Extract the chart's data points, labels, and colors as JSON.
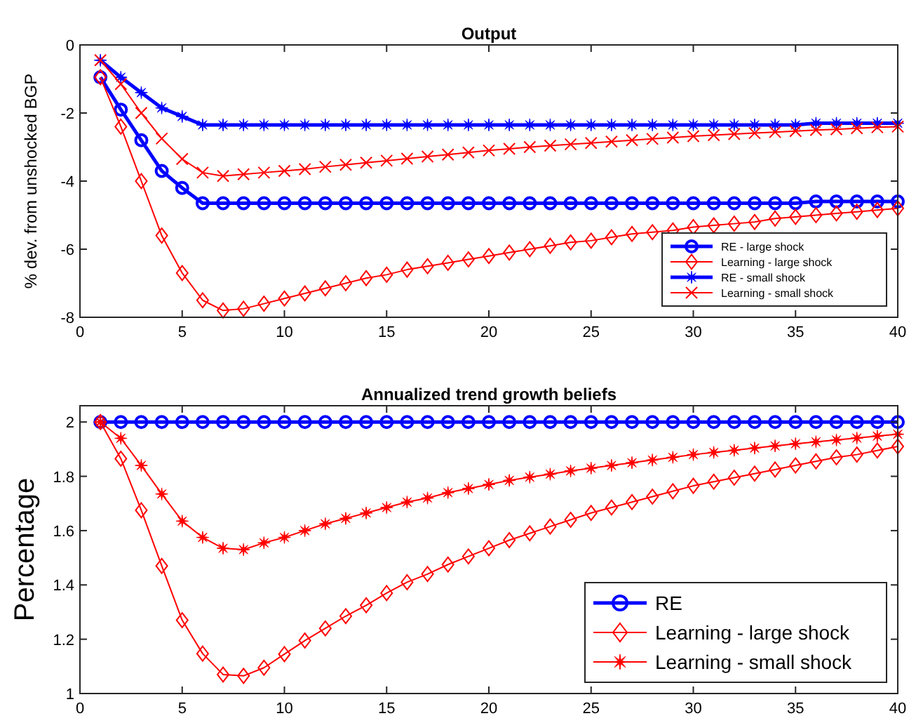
{
  "chart_data": [
    {
      "type": "line",
      "title": "Output",
      "ylabel": "% dev. from unshocked BGP",
      "x": [
        1,
        2,
        3,
        4,
        5,
        6,
        7,
        8,
        9,
        10,
        11,
        12,
        13,
        14,
        15,
        16,
        17,
        18,
        19,
        20,
        21,
        22,
        23,
        24,
        25,
        26,
        27,
        28,
        29,
        30,
        31,
        32,
        33,
        34,
        35,
        36,
        37,
        38,
        39,
        40
      ],
      "xlim": [
        0,
        40
      ],
      "xticks": [
        0,
        5,
        10,
        15,
        20,
        25,
        30,
        35,
        40
      ],
      "ylim": [
        -8,
        0
      ],
      "yticks": [
        -8,
        -6,
        -4,
        -2,
        0
      ],
      "grid": false,
      "legend": "bottom right",
      "series": [
        {
          "name": "RE - large shock",
          "color": "#0000ff",
          "marker": "circle",
          "values": [
            -0.95,
            -1.9,
            -2.8,
            -3.7,
            -4.2,
            -4.65,
            -4.65,
            -4.65,
            -4.65,
            -4.65,
            -4.65,
            -4.65,
            -4.65,
            -4.65,
            -4.65,
            -4.65,
            -4.65,
            -4.65,
            -4.65,
            -4.65,
            -4.65,
            -4.65,
            -4.65,
            -4.65,
            -4.65,
            -4.65,
            -4.65,
            -4.65,
            -4.65,
            -4.65,
            -4.65,
            -4.65,
            -4.65,
            -4.65,
            -4.65,
            -4.6,
            -4.6,
            -4.6,
            -4.6,
            -4.6
          ]
        },
        {
          "name": "Learning - large shock",
          "color": "#ff0000",
          "marker": "diamond",
          "values": [
            -0.95,
            -2.4,
            -4.0,
            -5.6,
            -6.7,
            -7.5,
            -7.8,
            -7.75,
            -7.6,
            -7.45,
            -7.3,
            -7.15,
            -7.0,
            -6.85,
            -6.75,
            -6.6,
            -6.5,
            -6.4,
            -6.3,
            -6.2,
            -6.1,
            -6.0,
            -5.9,
            -5.8,
            -5.75,
            -5.65,
            -5.55,
            -5.5,
            -5.45,
            -5.35,
            -5.3,
            -5.25,
            -5.2,
            -5.1,
            -5.05,
            -5.0,
            -4.95,
            -4.9,
            -4.85,
            -4.8
          ]
        },
        {
          "name": "RE - small shock",
          "color": "#0000ff",
          "marker": "star",
          "values": [
            -0.45,
            -0.95,
            -1.4,
            -1.85,
            -2.1,
            -2.35,
            -2.35,
            -2.35,
            -2.35,
            -2.35,
            -2.35,
            -2.35,
            -2.35,
            -2.35,
            -2.35,
            -2.35,
            -2.35,
            -2.35,
            -2.35,
            -2.35,
            -2.35,
            -2.35,
            -2.35,
            -2.35,
            -2.35,
            -2.35,
            -2.35,
            -2.35,
            -2.35,
            -2.35,
            -2.35,
            -2.35,
            -2.35,
            -2.35,
            -2.35,
            -2.3,
            -2.3,
            -2.3,
            -2.3,
            -2.3
          ]
        },
        {
          "name": "Learning - small shock",
          "color": "#ff0000",
          "marker": "cross",
          "values": [
            -0.45,
            -1.15,
            -2.0,
            -2.75,
            -3.35,
            -3.75,
            -3.85,
            -3.8,
            -3.75,
            -3.7,
            -3.65,
            -3.58,
            -3.52,
            -3.46,
            -3.4,
            -3.34,
            -3.28,
            -3.22,
            -3.16,
            -3.1,
            -3.05,
            -3.0,
            -2.96,
            -2.92,
            -2.88,
            -2.84,
            -2.8,
            -2.76,
            -2.72,
            -2.68,
            -2.65,
            -2.62,
            -2.59,
            -2.56,
            -2.53,
            -2.5,
            -2.48,
            -2.45,
            -2.42,
            -2.4
          ]
        }
      ]
    },
    {
      "type": "line",
      "title": "Annualized trend growth beliefs",
      "ylabel": "Percentage",
      "x": [
        1,
        2,
        3,
        4,
        5,
        6,
        7,
        8,
        9,
        10,
        11,
        12,
        13,
        14,
        15,
        16,
        17,
        18,
        19,
        20,
        21,
        22,
        23,
        24,
        25,
        26,
        27,
        28,
        29,
        30,
        31,
        32,
        33,
        34,
        35,
        36,
        37,
        38,
        39,
        40
      ],
      "xlim": [
        0,
        40
      ],
      "xticks": [
        0,
        5,
        10,
        15,
        20,
        25,
        30,
        35,
        40
      ],
      "ylim": [
        1,
        2.06
      ],
      "yticks": [
        1,
        1.2,
        1.4,
        1.6,
        1.8,
        2
      ],
      "grid": false,
      "legend": "bottom right",
      "series": [
        {
          "name": "RE",
          "color": "#0000ff",
          "marker": "circle",
          "values": [
            2,
            2,
            2,
            2,
            2,
            2,
            2,
            2,
            2,
            2,
            2,
            2,
            2,
            2,
            2,
            2,
            2,
            2,
            2,
            2,
            2,
            2,
            2,
            2,
            2,
            2,
            2,
            2,
            2,
            2,
            2,
            2,
            2,
            2,
            2,
            2,
            2,
            2,
            2,
            2
          ]
        },
        {
          "name": "Learning - large shock",
          "color": "#ff0000",
          "marker": "diamond",
          "values": [
            2.0,
            1.865,
            1.675,
            1.47,
            1.27,
            1.147,
            1.07,
            1.065,
            1.095,
            1.145,
            1.195,
            1.24,
            1.285,
            1.325,
            1.37,
            1.41,
            1.44,
            1.475,
            1.505,
            1.535,
            1.565,
            1.59,
            1.615,
            1.64,
            1.665,
            1.685,
            1.705,
            1.725,
            1.745,
            1.765,
            1.78,
            1.795,
            1.81,
            1.825,
            1.84,
            1.855,
            1.87,
            1.88,
            1.895,
            1.91
          ]
        },
        {
          "name": "Learning - small shock",
          "color": "#ff0000",
          "marker": "star",
          "values": [
            2.0,
            1.94,
            1.84,
            1.735,
            1.635,
            1.575,
            1.535,
            1.53,
            1.555,
            1.575,
            1.6,
            1.625,
            1.645,
            1.665,
            1.685,
            1.705,
            1.72,
            1.74,
            1.755,
            1.77,
            1.785,
            1.797,
            1.808,
            1.82,
            1.83,
            1.84,
            1.85,
            1.86,
            1.87,
            1.88,
            1.888,
            1.896,
            1.904,
            1.912,
            1.92,
            1.927,
            1.934,
            1.941,
            1.948,
            1.955
          ]
        }
      ]
    }
  ]
}
